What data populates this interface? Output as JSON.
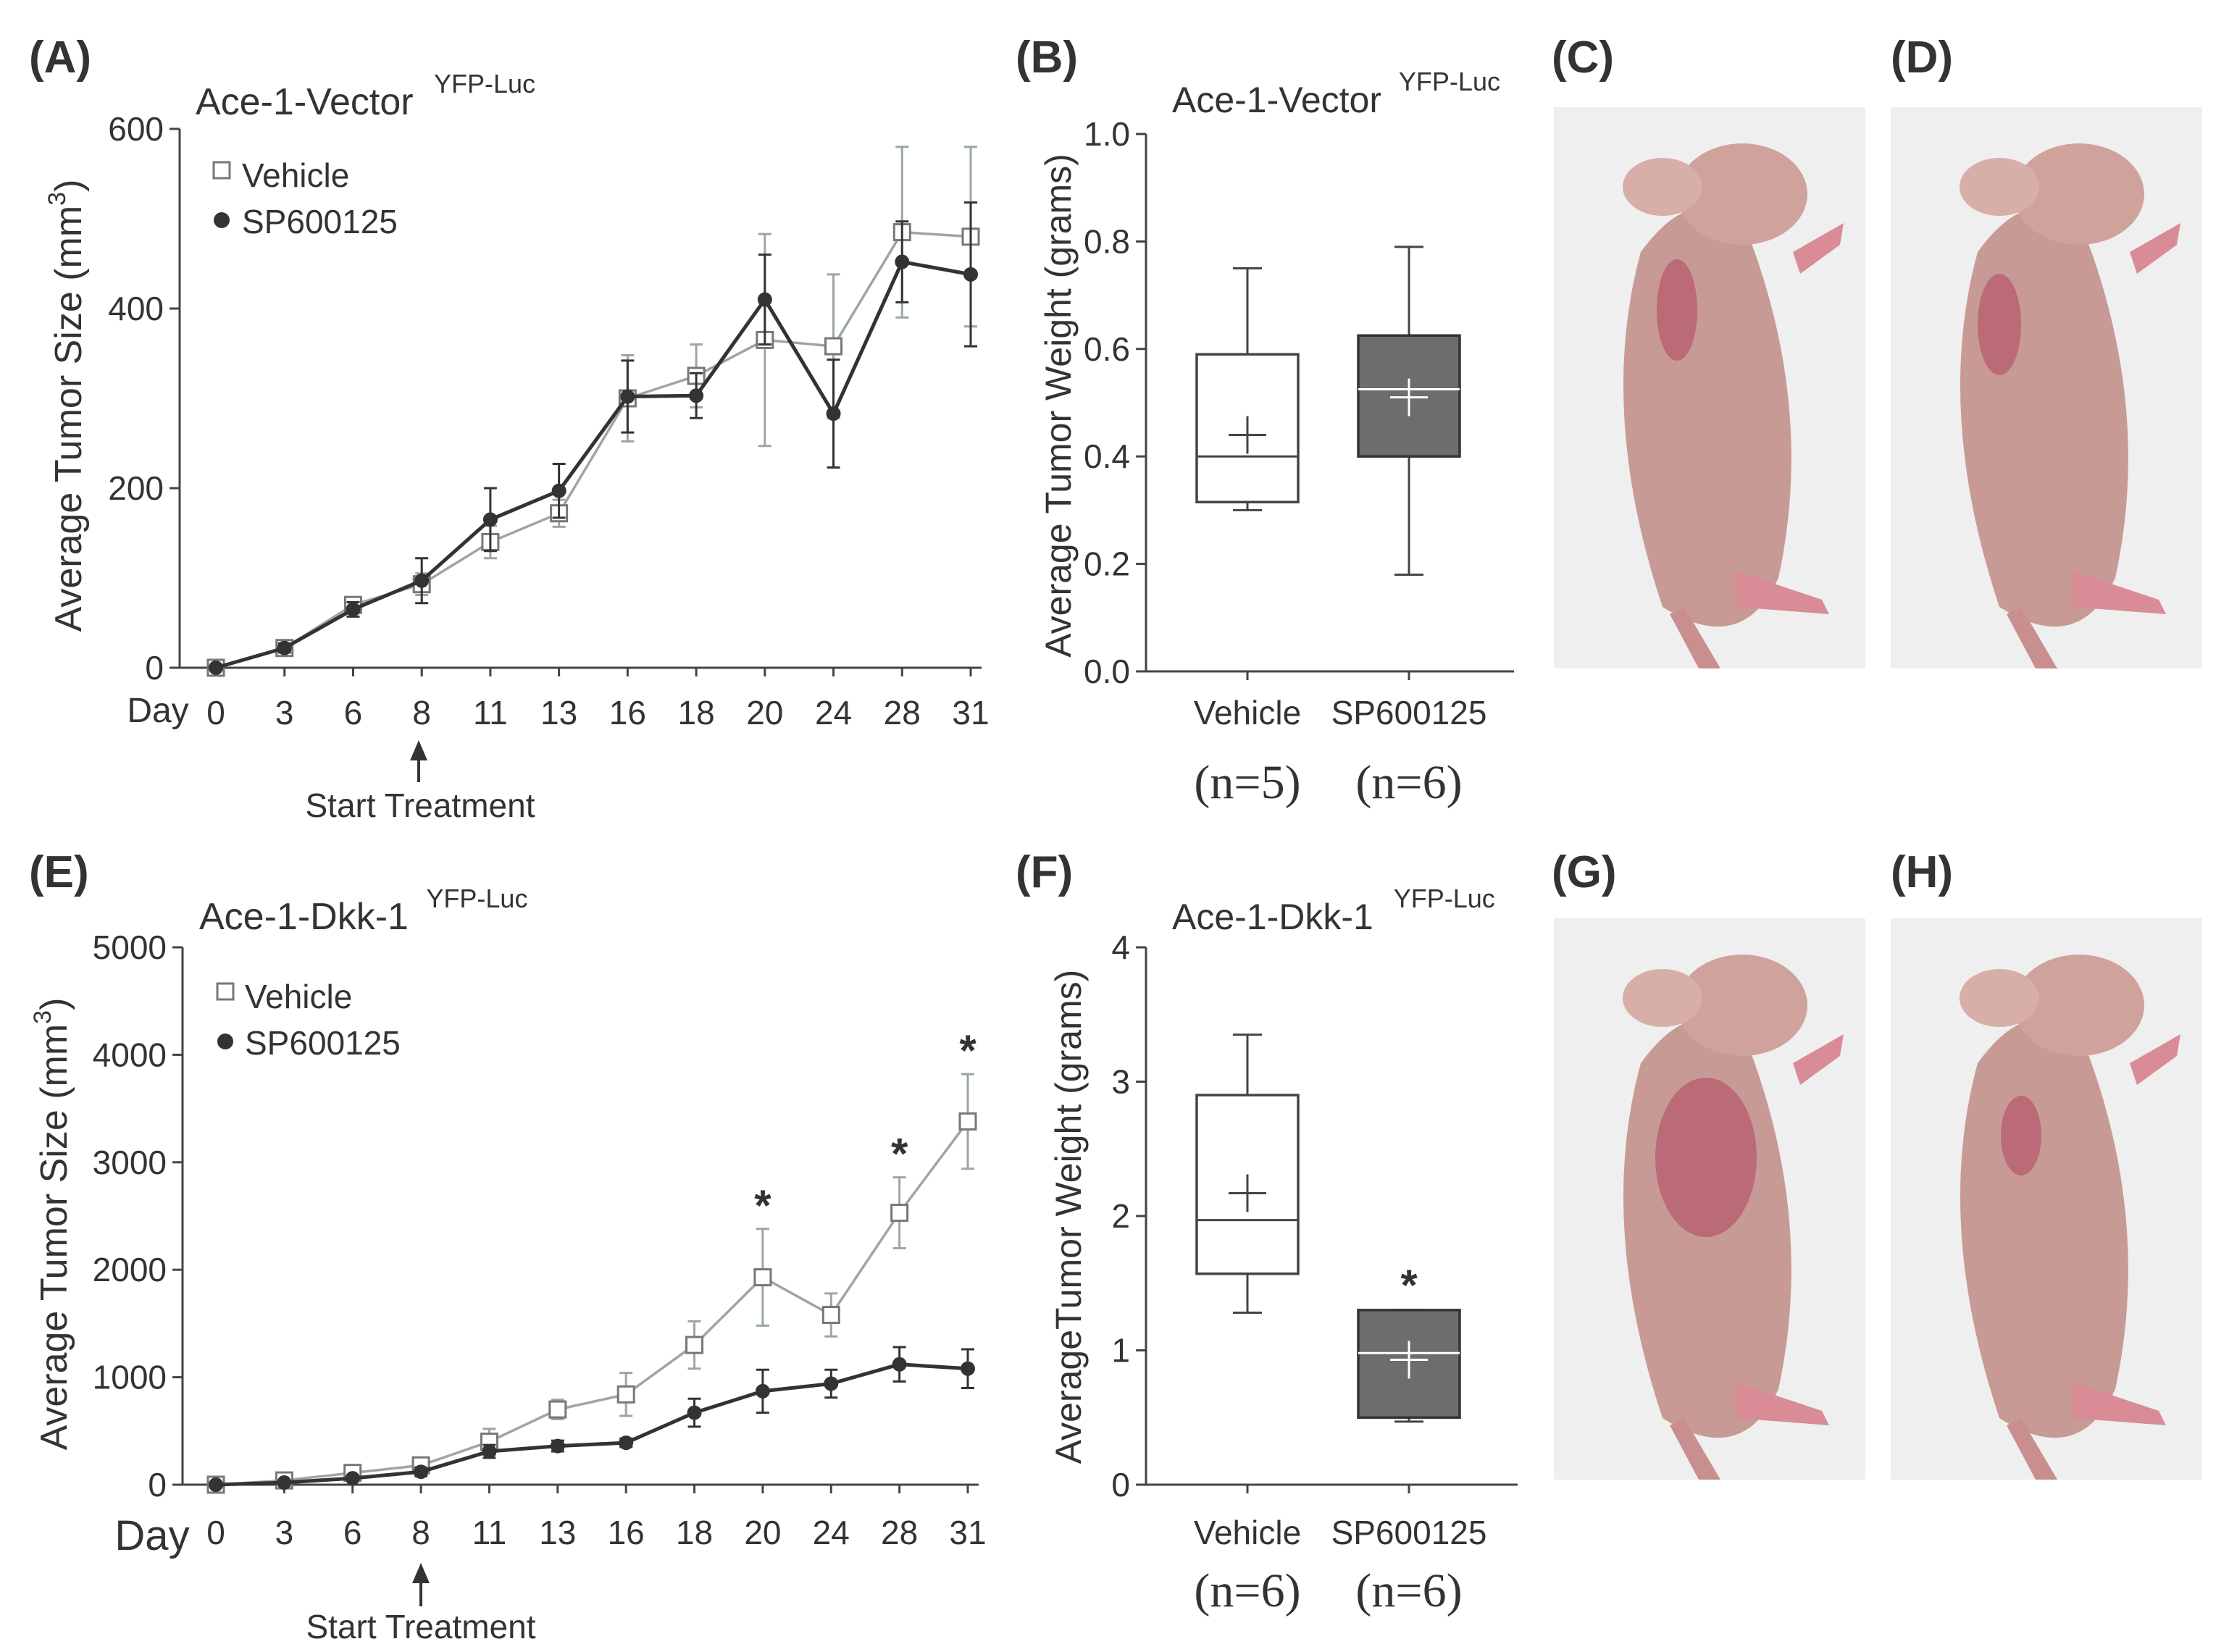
{
  "colors": {
    "vehicle": "#9aa7a3",
    "sp": "#333333",
    "axis": "#444444",
    "box_sp_fill": "#6d6d6d",
    "photo_bg": "#efefef",
    "mouse_skin": "#c89a95",
    "tumor": "#b7596e"
  },
  "panels": {
    "A": {
      "letter": "(A)",
      "title_main": "Ace-1-Vector",
      "title_sup": "YFP-Luc",
      "legend_vehicle": "Vehicle",
      "legend_sp": "SP600125",
      "annotation": "Start Treatment",
      "day_label": "Day"
    },
    "B": {
      "letter": "(B)",
      "title_main": "Ace-1-Vector",
      "title_sup": "YFP-Luc",
      "n_vehicle": "(n=5)",
      "n_sp": "(n=6)"
    },
    "C": {
      "letter": "(C)",
      "icon": "mouse-photo"
    },
    "D": {
      "letter": "(D)",
      "icon": "mouse-photo"
    },
    "E": {
      "letter": "(E)",
      "title_main": "Ace-1-Dkk-1",
      "title_sup": "YFP-Luc",
      "legend_vehicle": "Vehicle",
      "legend_sp": "SP600125",
      "annotation": "Start Treatment",
      "day_label": "Day"
    },
    "F": {
      "letter": "(F)",
      "title_main": "Ace-1-Dkk-1",
      "title_sup": "YFP-Luc",
      "n_vehicle": "(n=6)",
      "n_sp": "(n=6)"
    },
    "G": {
      "letter": "(G)",
      "icon": "mouse-photo"
    },
    "H": {
      "letter": "(H)",
      "icon": "mouse-photo"
    }
  },
  "chart_data": [
    {
      "panel": "A",
      "type": "line",
      "title": "Ace-1-Vector YFP-Luc",
      "xlabel": "Day",
      "ylabel": "Average Tumor Size (mm3)",
      "ylabel_main": "Average Tumor Size (mm",
      "ylabel_sup": "3",
      "ylabel_end": ")",
      "x": [
        0,
        3,
        6,
        8,
        11,
        13,
        16,
        18,
        20,
        24,
        28,
        31
      ],
      "ylim": [
        0,
        600
      ],
      "yticks": [
        0,
        200,
        400,
        600
      ],
      "series": [
        {
          "name": "Vehicle",
          "marker": "open-square",
          "values": [
            0,
            22,
            70,
            93,
            140,
            172,
            300,
            325,
            365,
            358,
            485,
            480
          ],
          "error": [
            0,
            5,
            8,
            12,
            18,
            15,
            48,
            35,
            118,
            80,
            95,
            100
          ]
        },
        {
          "name": "SP600125",
          "marker": "filled-circle",
          "values": [
            0,
            22,
            65,
            97,
            165,
            197,
            302,
            303,
            410,
            283,
            452,
            438
          ],
          "error": [
            0,
            5,
            8,
            25,
            35,
            30,
            40,
            25,
            50,
            60,
            45,
            80
          ]
        }
      ],
      "annotation": {
        "text": "Start Treatment",
        "x": 8
      }
    },
    {
      "panel": "B",
      "type": "box",
      "title": "Ace-1-Vector YFP-Luc",
      "ylabel": "Average Tumor Weight (grams)",
      "ylim": [
        0,
        1.0
      ],
      "yticks": [
        "0.0",
        "0.2",
        "0.4",
        "0.6",
        "0.8",
        "1.0"
      ],
      "categories": [
        "Vehicle",
        "SP600125"
      ],
      "boxes": [
        {
          "name": "Vehicle",
          "min": 0.3,
          "q1": 0.315,
          "median": 0.4,
          "q3": 0.59,
          "max": 0.75,
          "mean": 0.44,
          "n": "(n=5)"
        },
        {
          "name": "SP600125",
          "min": 0.18,
          "q1": 0.4,
          "median": 0.525,
          "q3": 0.625,
          "max": 0.79,
          "mean": 0.51,
          "n": "(n=6)"
        }
      ]
    },
    {
      "panel": "E",
      "type": "line",
      "title": "Ace-1-Dkk-1 YFP-Luc",
      "xlabel": "Day",
      "ylabel": "Average Tumor Size (mm3)",
      "ylabel_main": "Average Tumor Size (mm",
      "ylabel_sup": "3",
      "ylabel_end": ")",
      "x": [
        0,
        3,
        6,
        8,
        11,
        13,
        16,
        18,
        20,
        24,
        28,
        31
      ],
      "ylim": [
        0,
        5000
      ],
      "yticks": [
        0,
        1000,
        2000,
        3000,
        4000,
        5000
      ],
      "series": [
        {
          "name": "Vehicle",
          "marker": "open-square",
          "values": [
            0,
            40,
            110,
            180,
            400,
            700,
            840,
            1300,
            1930,
            1580,
            2530,
            3380
          ],
          "error": [
            0,
            20,
            30,
            40,
            120,
            90,
            200,
            220,
            450,
            200,
            330,
            440
          ]
        },
        {
          "name": "SP600125",
          "marker": "filled-circle",
          "values": [
            0,
            20,
            60,
            120,
            310,
            360,
            390,
            670,
            870,
            940,
            1120,
            1080
          ],
          "error": [
            0,
            10,
            20,
            40,
            60,
            50,
            40,
            130,
            200,
            130,
            160,
            180
          ]
        }
      ],
      "significance": {
        "marker": "*",
        "days": [
          20,
          28,
          31
        ]
      },
      "annotation": {
        "text": "Start Treatment",
        "x": 8
      }
    },
    {
      "panel": "F",
      "type": "box",
      "title": "Ace-1-Dkk-1 YFP-Luc",
      "ylabel": "AverageTumor Weight (grams)",
      "ylim": [
        0,
        4
      ],
      "yticks": [
        "0",
        "1",
        "2",
        "3",
        "4"
      ],
      "categories": [
        "Vehicle",
        "SP600125"
      ],
      "boxes": [
        {
          "name": "Vehicle",
          "min": 1.28,
          "q1": 1.57,
          "median": 1.97,
          "q3": 2.9,
          "max": 3.35,
          "mean": 2.17,
          "n": "(n=6)"
        },
        {
          "name": "SP600125",
          "min": 0.47,
          "q1": 0.5,
          "median": 0.98,
          "q3": 1.3,
          "max": 1.3,
          "mean": 0.93,
          "n": "(n=6)",
          "significance": "*"
        }
      ]
    }
  ]
}
